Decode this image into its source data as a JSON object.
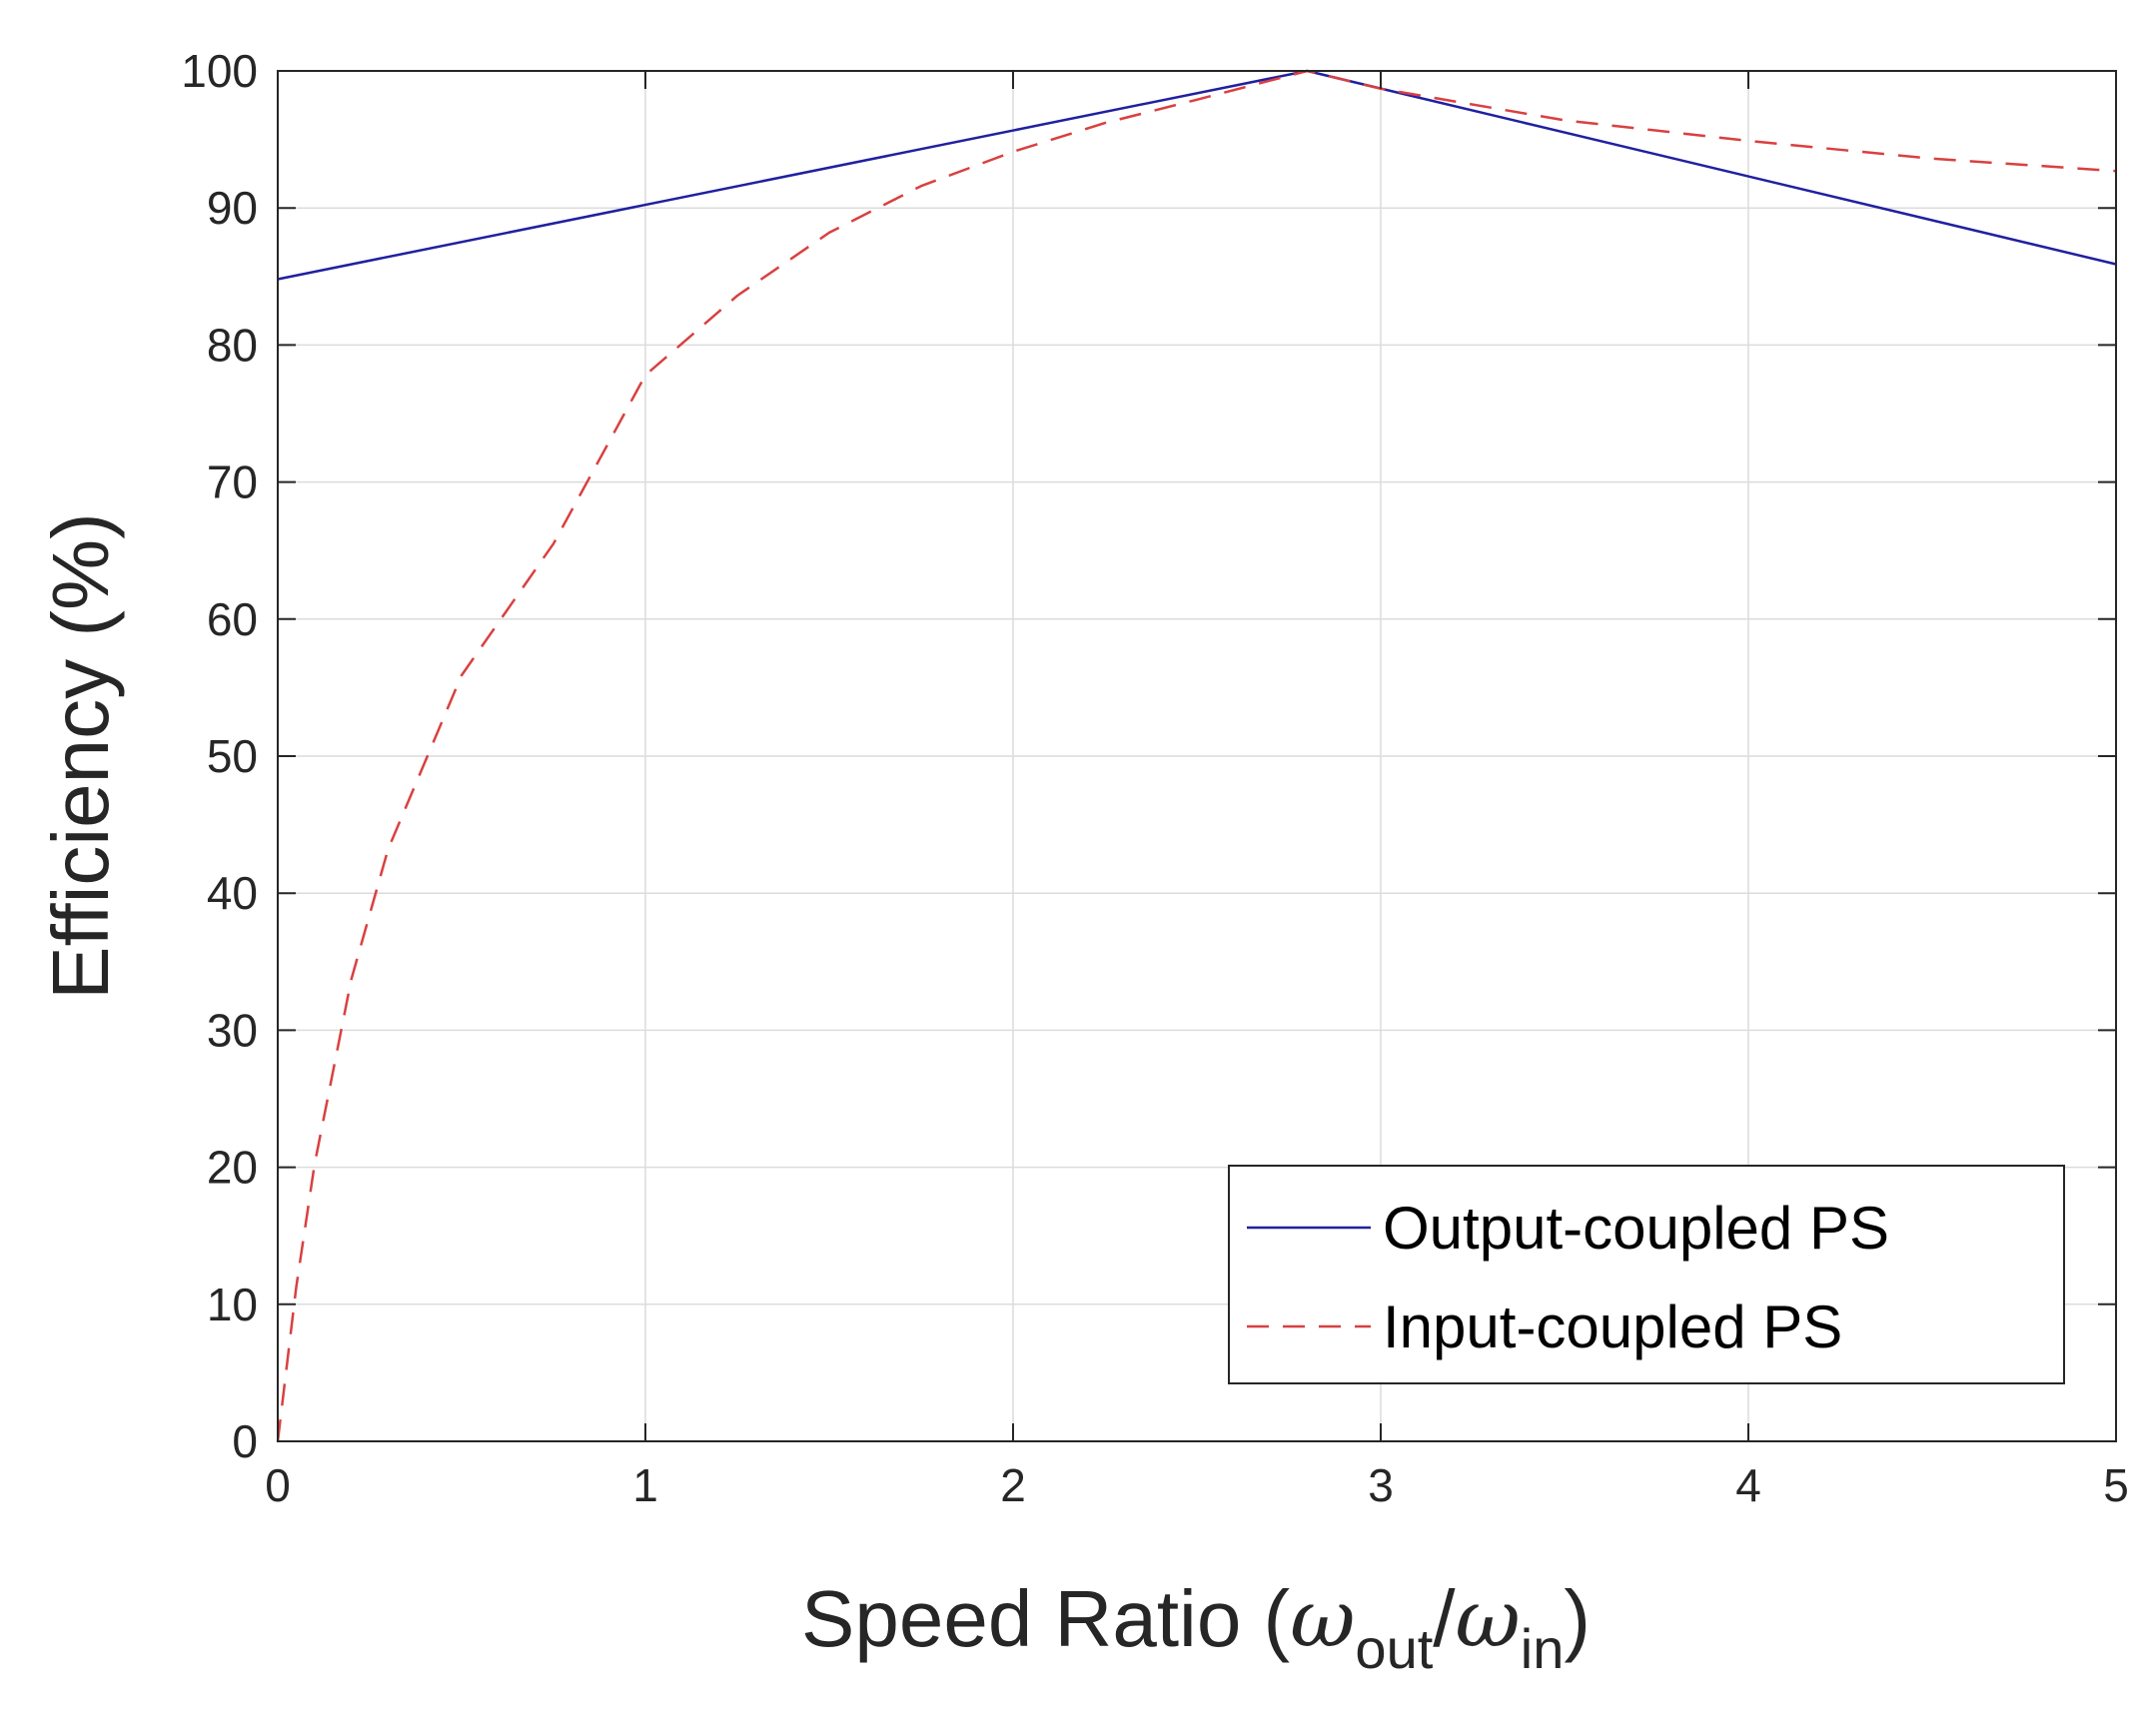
{
  "chart_data": {
    "type": "line",
    "title": "",
    "xlabel": {
      "main": "Speed Ratio (",
      "sym1": "ω",
      "sub1": "out",
      "slash": "/",
      "sym2": "ω",
      "sub2": "in",
      "close": ")"
    },
    "ylabel": "Efficiency (%)",
    "xlim": [
      0,
      5
    ],
    "ylim": [
      0,
      100
    ],
    "xticks": [
      "0",
      "1",
      "2",
      "3",
      "4",
      "5"
    ],
    "yticks": [
      "0",
      "10",
      "20",
      "30",
      "40",
      "50",
      "60",
      "70",
      "80",
      "90",
      "100"
    ],
    "grid": true,
    "legend_position": "bottom-right",
    "series": [
      {
        "name": "Output-coupled PS",
        "color": "#2020a0",
        "style": "solid",
        "x": [
          0,
          2.8,
          5
        ],
        "y": [
          84.8,
          100,
          85.9
        ]
      },
      {
        "name": "Input-coupled PS",
        "color": "#d94040",
        "style": "dashed",
        "x": [
          0,
          0.05,
          0.1,
          0.2,
          0.3,
          0.5,
          0.75,
          1.0,
          1.25,
          1.5,
          1.75,
          2.0,
          2.25,
          2.5,
          2.8,
          3.0,
          3.5,
          4.0,
          4.5,
          5.0
        ],
        "y": [
          0,
          11.2,
          20.2,
          33.7,
          43.2,
          55.9,
          65.5,
          77.8,
          83.6,
          88.2,
          91.6,
          94.1,
          96.2,
          97.9,
          100,
          98.7,
          96.4,
          94.9,
          93.6,
          92.7
        ]
      }
    ]
  }
}
